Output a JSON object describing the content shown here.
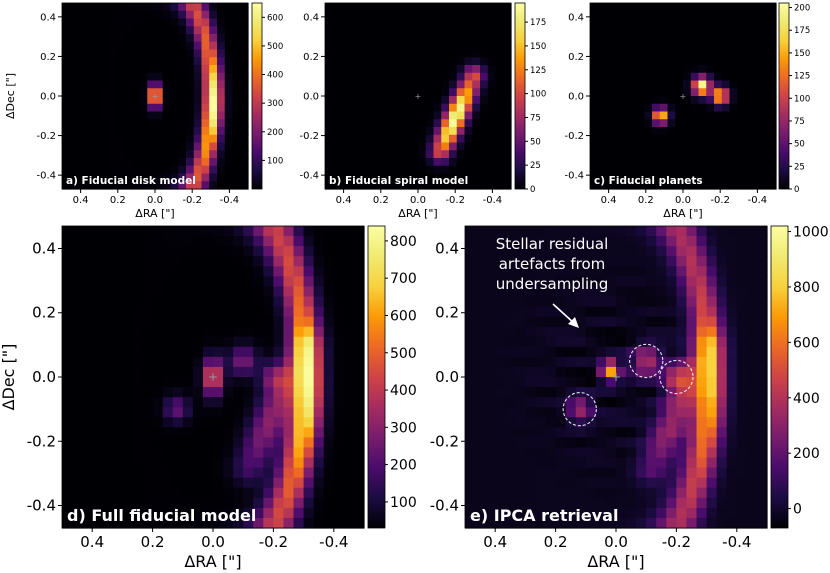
{
  "chart_data": [
    {
      "type": "heatmap",
      "id": "a",
      "label": "a) Fiducial disk model",
      "xlabel": "ΔRA [\"]",
      "ylabel": "ΔDec [\"]",
      "xlim": [
        0.5,
        -0.5
      ],
      "ylim": [
        -0.47,
        0.47
      ],
      "xticks": [
        "0.4",
        "0.2",
        "0.0",
        "-0.2",
        "-0.4"
      ],
      "yticks": [
        "0.4",
        "0.2",
        "0.0",
        "-0.2",
        "-0.4"
      ],
      "colorbar": {
        "min": 0,
        "max": 650,
        "ticks": [
          "100",
          "200",
          "300",
          "400",
          "500",
          "600"
        ]
      },
      "features": [
        {
          "kind": "arc",
          "description": "crescent disk on west side",
          "peak_value": 620
        },
        {
          "kind": "blob",
          "ra": 0.0,
          "dec": 0.0,
          "peak_value": 600
        }
      ]
    },
    {
      "type": "heatmap",
      "id": "b",
      "label": "b) Fiducial spiral model",
      "xlabel": "ΔRA [\"]",
      "xlim": [
        0.5,
        -0.5
      ],
      "ylim": [
        -0.47,
        0.47
      ],
      "xticks": [
        "0.4",
        "0.2",
        "0.0",
        "-0.2",
        "-0.4"
      ],
      "yticks": [
        "0.4",
        "0.2",
        "0.0",
        "-0.2",
        "-0.4"
      ],
      "colorbar": {
        "min": 0,
        "max": 195,
        "ticks": [
          "0",
          "25",
          "50",
          "75",
          "100",
          "125",
          "150",
          "175"
        ]
      },
      "features": [
        {
          "kind": "spiral",
          "from": [
            -0.12,
            -0.28
          ],
          "to": [
            -0.3,
            0.1
          ],
          "peak_value": 190
        }
      ]
    },
    {
      "type": "heatmap",
      "id": "c",
      "label": "c) Fiducial planets",
      "xlabel": "ΔRA [\"]",
      "xlim": [
        0.5,
        -0.5
      ],
      "ylim": [
        -0.47,
        0.47
      ],
      "xticks": [
        "0.4",
        "0.2",
        "0.0",
        "-0.2",
        "-0.4"
      ],
      "yticks": [
        "0.4",
        "0.2",
        "0.0",
        "-0.2",
        "-0.4"
      ],
      "colorbar": {
        "min": 0,
        "max": 205,
        "ticks": [
          "0",
          "25",
          "50",
          "75",
          "100",
          "125",
          "150",
          "175",
          "200"
        ]
      },
      "features": [
        {
          "kind": "planet",
          "ra": -0.1,
          "dec": 0.05,
          "peak_value": 200
        },
        {
          "kind": "planet",
          "ra": -0.2,
          "dec": 0.0,
          "peak_value": 170
        },
        {
          "kind": "planet",
          "ra": 0.12,
          "dec": -0.1,
          "peak_value": 170
        }
      ]
    },
    {
      "type": "heatmap",
      "id": "d",
      "label": "d) Full fiducial model",
      "xlabel": "ΔRA [\"]",
      "ylabel": "ΔDec [\"]",
      "xlim": [
        0.5,
        -0.5
      ],
      "ylim": [
        -0.47,
        0.47
      ],
      "xticks": [
        "0.4",
        "0.2",
        "0.0",
        "-0.2",
        "-0.4"
      ],
      "yticks": [
        "0.4",
        "0.2",
        "0.0",
        "-0.2",
        "-0.4"
      ],
      "colorbar": {
        "min": 30,
        "max": 840,
        "ticks": [
          "100",
          "200",
          "300",
          "400",
          "500",
          "600",
          "700",
          "800"
        ]
      }
    },
    {
      "type": "heatmap",
      "id": "e",
      "label": "e) IPCA retrieval",
      "xlabel": "ΔRA [\"]",
      "xlim": [
        0.5,
        -0.5
      ],
      "ylim": [
        -0.47,
        0.47
      ],
      "xticks": [
        "0.4",
        "0.2",
        "0.0",
        "-0.2",
        "-0.4"
      ],
      "yticks": [
        "0.4",
        "0.2",
        "0.0",
        "-0.2",
        "-0.4"
      ],
      "colorbar": {
        "min": -70,
        "max": 1020,
        "ticks": [
          "0",
          "200",
          "400",
          "600",
          "800",
          "1000"
        ]
      },
      "annotation": {
        "lines": [
          "Stellar residual",
          "artefacts from",
          "undersampling"
        ]
      },
      "circles": [
        {
          "ra": -0.1,
          "dec": 0.05,
          "r": 0.055
        },
        {
          "ra": -0.2,
          "dec": 0.0,
          "r": 0.055
        },
        {
          "ra": 0.12,
          "dec": -0.1,
          "r": 0.055
        }
      ]
    }
  ]
}
